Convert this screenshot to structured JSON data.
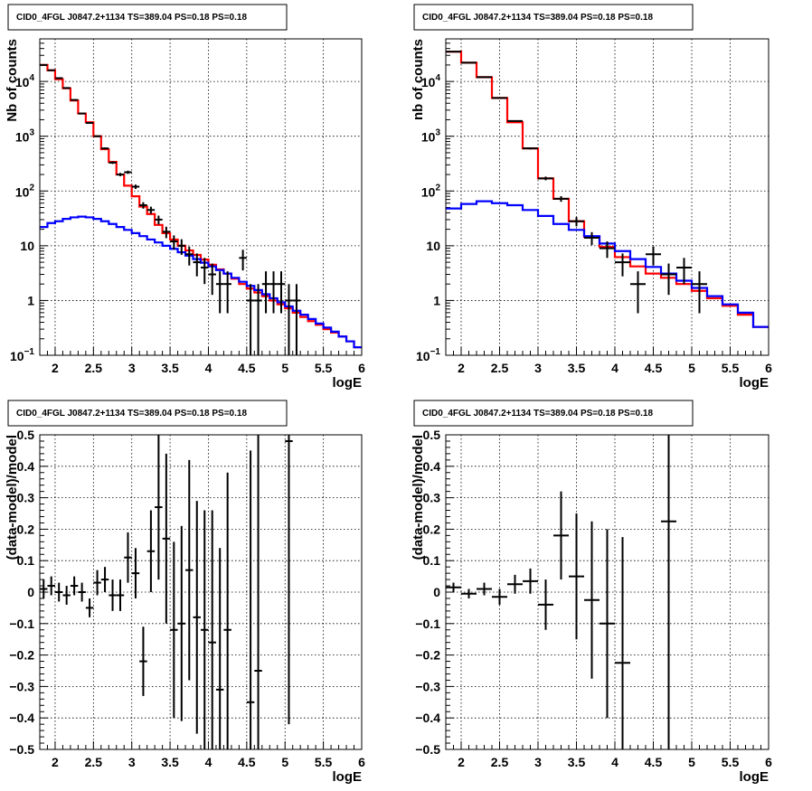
{
  "chart_data": [
    {
      "id": "tl",
      "type": "histogram",
      "title": "CID0_4FGL J0847.2+1134 TS=389.04 PS=0.18 PS=0.18",
      "xlabel": "logE",
      "ylabel": "Nb of counts",
      "xlim": [
        1.8,
        6.0
      ],
      "ylim": [
        0.1,
        60000
      ],
      "log_y": true,
      "grid": true,
      "xticks": [
        "2",
        "2.5",
        "3",
        "3.5",
        "4",
        "4.5",
        "5",
        "5.5",
        "6"
      ],
      "yticks": [
        {
          "value": 0.1,
          "base": "10",
          "exp": "−1"
        },
        {
          "value": 1,
          "label": "1"
        },
        {
          "value": 10,
          "label": "10"
        },
        {
          "value": 100,
          "base": "10",
          "exp": "2"
        },
        {
          "value": 1000,
          "base": "10",
          "exp": "3"
        },
        {
          "value": 10000,
          "base": "10",
          "exp": "4"
        }
      ],
      "bin_edges": [
        1.8,
        1.9,
        2.0,
        2.1,
        2.2,
        2.3,
        2.4,
        2.5,
        2.6,
        2.7,
        2.8,
        2.9,
        3.0,
        3.1,
        3.2,
        3.3,
        3.4,
        3.5,
        3.6,
        3.7,
        3.8,
        3.9,
        4.0,
        4.1,
        4.2,
        4.3,
        4.4,
        4.5,
        4.6,
        4.7,
        4.8,
        4.9,
        5.0,
        5.1,
        5.2,
        5.3,
        5.4,
        5.5,
        5.6,
        5.7,
        5.8,
        5.9,
        6.0
      ],
      "series": [
        {
          "name": "",
          "color": "#ff0000",
          "style": "step",
          "values": [
            20000,
            16000,
            11000,
            7500,
            4500,
            2600,
            1800,
            1000,
            580,
            340,
            200,
            125,
            80,
            52,
            38,
            24,
            17,
            13,
            10,
            8.2,
            6.8,
            5.6,
            4.5,
            3.7,
            3.1,
            2.5,
            2.0,
            1.65,
            1.4,
            1.2,
            1.0,
            0.85,
            0.72,
            0.6,
            0.5,
            0.42,
            0.36,
            0.3,
            0.26,
            0.22,
            0.18,
            0.14
          ]
        },
        {
          "name": "",
          "color": "#0000ff",
          "style": "step",
          "values": [
            22,
            26,
            28,
            31,
            33,
            34,
            33,
            31,
            28,
            25,
            22,
            19.5,
            17,
            15,
            13,
            11.5,
            10,
            8.8,
            7.6,
            6.6,
            5.7,
            4.9,
            4.2,
            3.6,
            3.1,
            2.6,
            2.2,
            1.85,
            1.55,
            1.3,
            1.1,
            0.93,
            0.78,
            0.65,
            0.55,
            0.46,
            0.38,
            0.32,
            0.27,
            0.22,
            0.18,
            0.14
          ]
        }
      ],
      "points": {
        "name": "",
        "color": "#000000",
        "x": [
          1.85,
          1.95,
          2.05,
          2.15,
          2.25,
          2.35,
          2.45,
          2.55,
          2.65,
          2.75,
          2.85,
          2.95,
          3.05,
          3.15,
          3.25,
          3.35,
          3.45,
          3.55,
          3.65,
          3.75,
          3.85,
          3.95,
          4.05,
          4.15,
          4.25,
          4.45,
          4.55,
          4.65,
          4.75,
          4.85,
          4.95,
          5.05,
          5.15
        ],
        "y": [
          20000,
          16000,
          11500,
          7600,
          4600,
          2600,
          1750,
          1000,
          600,
          330,
          200,
          220,
          120,
          55,
          45,
          30,
          18,
          12,
          10,
          7,
          5,
          4,
          3,
          2,
          2,
          6,
          1,
          1,
          2,
          2,
          2,
          1,
          1
        ],
        "xerr": 0.05
      }
    },
    {
      "id": "tr",
      "type": "histogram",
      "title": "CID0_4FGL J0847.2+1134 TS=389.04 PS=0.18 PS=0.18",
      "xlabel": "logE",
      "ylabel": "nb of counts",
      "xlim": [
        1.8,
        6.0
      ],
      "ylim": [
        0.1,
        60000
      ],
      "log_y": true,
      "grid": true,
      "xticks": [
        "2",
        "2.5",
        "3",
        "3.5",
        "4",
        "4.5",
        "5",
        "5.5",
        "6"
      ],
      "yticks": [
        {
          "value": 0.1,
          "base": "10",
          "exp": "−1"
        },
        {
          "value": 1,
          "label": "1"
        },
        {
          "value": 10,
          "label": "10"
        },
        {
          "value": 100,
          "base": "10",
          "exp": "2"
        },
        {
          "value": 1000,
          "base": "10",
          "exp": "3"
        },
        {
          "value": 10000,
          "base": "10",
          "exp": "4"
        }
      ],
      "bin_edges": [
        1.8,
        2.0,
        2.2,
        2.4,
        2.6,
        2.8,
        3.0,
        3.2,
        3.4,
        3.6,
        3.8,
        4.0,
        4.2,
        4.4,
        4.6,
        4.8,
        5.0,
        5.2,
        5.4,
        5.6,
        5.8,
        6.0
      ],
      "series": [
        {
          "name": "",
          "color": "#ff0000",
          "style": "step",
          "values": [
            35000,
            22000,
            12000,
            5000,
            1800,
            600,
            170,
            72,
            28,
            14.5,
            9.5,
            6.2,
            4.2,
            3.1,
            2.6,
            2.0,
            1.5,
            1.1,
            0.8,
            0.55,
            0.33
          ]
        },
        {
          "name": "",
          "color": "#0000ff",
          "style": "step",
          "values": [
            48,
            58,
            65,
            60,
            55,
            45,
            35,
            25,
            19.5,
            15,
            11,
            8,
            5.7,
            4.1,
            3.1,
            2.3,
            1.7,
            1.2,
            0.85,
            0.6,
            0.33
          ]
        }
      ],
      "points": {
        "name": "",
        "color": "#000000",
        "x": [
          1.9,
          2.1,
          2.3,
          2.5,
          2.7,
          2.9,
          3.1,
          3.3,
          3.5,
          3.7,
          3.9,
          4.1,
          4.3,
          4.5,
          4.7,
          4.9,
          5.1
        ],
        "y": [
          35000,
          22000,
          12000,
          5000,
          1900,
          600,
          170,
          72,
          28,
          14,
          9,
          5,
          2,
          7,
          3,
          4,
          2
        ],
        "xerr": 0.1
      }
    },
    {
      "id": "bl",
      "type": "scatter",
      "title": "CID0_4FGL J0847.2+1134 TS=389.04 PS=0.18 PS=0.18",
      "xlabel": "logE",
      "ylabel": "(data-model)/model",
      "xlim": [
        1.8,
        6.0
      ],
      "ylim": [
        -0.5,
        0.5
      ],
      "log_y": false,
      "grid": true,
      "xticks": [
        "2",
        "2.5",
        "3",
        "3.5",
        "4",
        "4.5",
        "5",
        "5.5",
        "6"
      ],
      "yticks": [
        {
          "value": -0.5,
          "label": "−0.5"
        },
        {
          "value": -0.4,
          "label": "−0.4"
        },
        {
          "value": -0.3,
          "label": "−0.3"
        },
        {
          "value": -0.2,
          "label": "−0.2"
        },
        {
          "value": -0.1,
          "label": "−0.1"
        },
        {
          "value": 0,
          "label": "0"
        },
        {
          "value": 0.1,
          "label": "0.1"
        },
        {
          "value": 0.2,
          "label": "0.2"
        },
        {
          "value": 0.3,
          "label": "0.3"
        },
        {
          "value": 0.4,
          "label": "0.4"
        },
        {
          "value": 0.5,
          "label": "0.5"
        }
      ],
      "points": {
        "name": "",
        "color": "#000000",
        "xerr": 0.05,
        "x": [
          1.85,
          1.95,
          2.05,
          2.15,
          2.25,
          2.35,
          2.45,
          2.55,
          2.65,
          2.75,
          2.85,
          2.95,
          3.05,
          3.15,
          3.25,
          3.35,
          3.45,
          3.55,
          3.65,
          3.75,
          3.85,
          3.95,
          4.05,
          4.15,
          4.25,
          4.55,
          4.65,
          5.05
        ],
        "y": [
          0.01,
          0.02,
          0.0,
          -0.01,
          0.02,
          0.0,
          -0.05,
          0.03,
          0.04,
          -0.01,
          -0.01,
          0.11,
          0.06,
          -0.22,
          0.13,
          0.27,
          0.17,
          -0.12,
          -0.1,
          0.07,
          -0.08,
          -0.12,
          -0.16,
          -0.31,
          -0.12,
          -0.35,
          -0.25,
          0.48
        ],
        "yerr": [
          0.03,
          0.03,
          0.03,
          0.03,
          0.03,
          0.03,
          0.03,
          0.04,
          0.04,
          0.05,
          0.05,
          0.08,
          0.08,
          0.11,
          0.13,
          0.23,
          0.27,
          0.28,
          0.31,
          0.35,
          0.37,
          0.38,
          0.42,
          0.45,
          0.5,
          0.8,
          0.8,
          0.9
        ]
      }
    },
    {
      "id": "br",
      "type": "scatter",
      "title": "CID0_4FGL J0847.2+1134 TS=389.04 PS=0.18 PS=0.18",
      "xlabel": "logE",
      "ylabel": "(data-model)/model",
      "xlim": [
        1.8,
        6.0
      ],
      "ylim": [
        -0.5,
        0.5
      ],
      "log_y": false,
      "grid": true,
      "xticks": [
        "2",
        "2.5",
        "3",
        "3.5",
        "4",
        "4.5",
        "5",
        "5.5",
        "6"
      ],
      "yticks": [
        {
          "value": -0.5,
          "label": "−0.5"
        },
        {
          "value": -0.4,
          "label": "−0.4"
        },
        {
          "value": -0.3,
          "label": "−0.3"
        },
        {
          "value": -0.2,
          "label": "−0.2"
        },
        {
          "value": -0.1,
          "label": "−0.1"
        },
        {
          "value": 0,
          "label": "0"
        },
        {
          "value": 0.1,
          "label": "0.1"
        },
        {
          "value": 0.2,
          "label": "0.2"
        },
        {
          "value": 0.3,
          "label": "0.3"
        },
        {
          "value": 0.4,
          "label": "0.4"
        },
        {
          "value": 0.5,
          "label": "0.5"
        }
      ],
      "points": {
        "name": "",
        "color": "#000000",
        "xerr": 0.1,
        "x": [
          1.9,
          2.1,
          2.3,
          2.5,
          2.7,
          2.9,
          3.1,
          3.3,
          3.5,
          3.7,
          3.9,
          4.1,
          4.7
        ],
        "y": [
          0.015,
          -0.005,
          0.01,
          -0.015,
          0.025,
          0.035,
          -0.04,
          0.18,
          0.05,
          -0.025,
          -0.1,
          -0.225,
          0.225
        ],
        "yerr": [
          0.015,
          0.015,
          0.02,
          0.025,
          0.03,
          0.04,
          0.08,
          0.14,
          0.2,
          0.25,
          0.3,
          0.4,
          0.8
        ]
      }
    }
  ]
}
